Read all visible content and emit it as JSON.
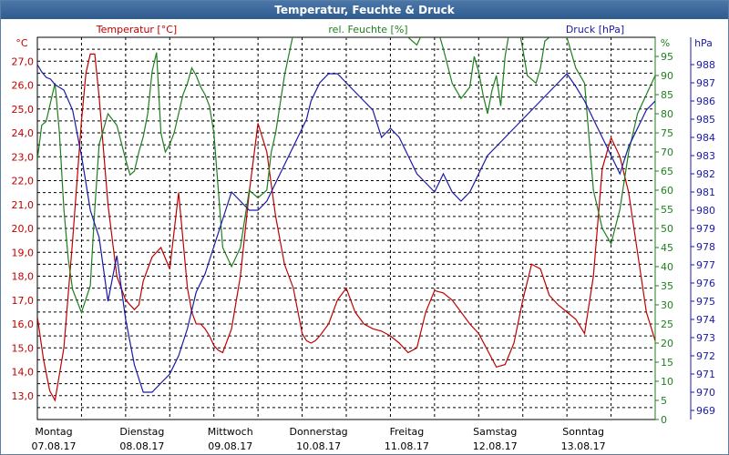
{
  "window": {
    "title": "Temperatur, Feuchte & Druck"
  },
  "chart_data": {
    "type": "line",
    "title": "Temperatur, Feuchte & Druck",
    "grid": true,
    "colors": {
      "temperature": "#c00000",
      "humidity": "#1f7f1f",
      "pressure": "#1a1aa6",
      "grid": "#000000",
      "titlebar": "#3a6a9e"
    },
    "x_range": [
      0,
      7
    ],
    "x_ticks": [
      {
        "x": 0,
        "day": "Montag",
        "date": "07.08.17"
      },
      {
        "x": 1,
        "day": "Dienstag",
        "date": "08.08.17"
      },
      {
        "x": 2,
        "day": "Mittwoch",
        "date": "09.08.17"
      },
      {
        "x": 3,
        "day": "Donnerstag",
        "date": "10.08.17"
      },
      {
        "x": 4,
        "day": "Freitag",
        "date": "11.08.17"
      },
      {
        "x": 5,
        "day": "Samstag",
        "date": "12.08.17"
      },
      {
        "x": 6,
        "day": "Sonntag",
        "date": "13.08.17"
      }
    ],
    "axes": {
      "temperature": {
        "label": "Temperatur [°C]",
        "unit": "°C",
        "range": [
          12.0,
          28.0
        ],
        "ticks": [
          "13,0",
          "14,0",
          "15,0",
          "16,0",
          "17,0",
          "18,0",
          "19,0",
          "20,0",
          "21,0",
          "22,0",
          "23,0",
          "24,0",
          "25,0",
          "26,0",
          "27,0"
        ]
      },
      "humidity": {
        "label": "rel. Feuchte [%]",
        "unit": "%",
        "range": [
          0,
          100
        ],
        "ticks": [
          "0",
          "5",
          "10",
          "15",
          "20",
          "25",
          "30",
          "35",
          "40",
          "45",
          "50",
          "55",
          "60",
          "65",
          "70",
          "75",
          "80",
          "85",
          "90",
          "95"
        ]
      },
      "pressure": {
        "label": "Druck [hPa]",
        "unit": "hPa",
        "range": [
          968.5,
          989.5
        ],
        "ticks": [
          "969",
          "970",
          "971",
          "972",
          "973",
          "974",
          "975",
          "976",
          "977",
          "978",
          "979",
          "980",
          "981",
          "982",
          "983",
          "984",
          "985",
          "986",
          "987",
          "988"
        ]
      }
    },
    "series": [
      {
        "name": "Temperatur [°C]",
        "axis": "temperature",
        "x": [
          0,
          0.07,
          0.14,
          0.2,
          0.3,
          0.4,
          0.5,
          0.55,
          0.6,
          0.65,
          0.7,
          0.8,
          0.9,
          1.0,
          1.1,
          1.15,
          1.2,
          1.3,
          1.4,
          1.5,
          1.6,
          1.7,
          1.75,
          1.8,
          1.85,
          1.9,
          1.95,
          2.0,
          2.05,
          2.1,
          2.2,
          2.3,
          2.4,
          2.5,
          2.6,
          2.7,
          2.8,
          2.9,
          3.0,
          3.05,
          3.1,
          3.15,
          3.2,
          3.3,
          3.4,
          3.5,
          3.6,
          3.7,
          3.8,
          3.9,
          4.0,
          4.1,
          4.2,
          4.3,
          4.4,
          4.5,
          4.6,
          4.7,
          4.8,
          4.9,
          5.0,
          5.1,
          5.2,
          5.3,
          5.4,
          5.5,
          5.6,
          5.7,
          5.8,
          5.9,
          6.0,
          6.1,
          6.2,
          6.3,
          6.4,
          6.5,
          6.6,
          6.7,
          6.8,
          6.9,
          7.0
        ],
        "values": [
          16.3,
          14.5,
          13.2,
          12.8,
          15.0,
          19.5,
          24.5,
          26.5,
          27.3,
          27.3,
          25.5,
          21.0,
          18.0,
          17.0,
          16.6,
          16.8,
          17.8,
          18.8,
          19.2,
          18.3,
          21.5,
          17.5,
          16.5,
          16.0,
          16.0,
          15.8,
          15.5,
          15.1,
          14.9,
          14.8,
          15.8,
          18.0,
          21.5,
          24.4,
          23.2,
          20.5,
          18.5,
          17.5,
          15.6,
          15.3,
          15.2,
          15.3,
          15.5,
          16.0,
          17.0,
          17.5,
          16.5,
          16.0,
          15.8,
          15.7,
          15.5,
          15.2,
          14.8,
          15.0,
          16.5,
          17.4,
          17.3,
          17.0,
          16.5,
          16.0,
          15.6,
          14.9,
          14.2,
          14.3,
          15.2,
          17.0,
          18.5,
          18.3,
          17.2,
          16.8,
          16.5,
          16.2,
          15.6,
          18.0,
          22.5,
          23.8,
          23.0,
          21.5,
          19.0,
          16.5,
          15.3
        ]
      },
      {
        "name": "rel. Feuchte [%]",
        "axis": "humidity",
        "x": [
          0,
          0.05,
          0.1,
          0.15,
          0.2,
          0.25,
          0.3,
          0.35,
          0.4,
          0.5,
          0.6,
          0.65,
          0.7,
          0.8,
          0.9,
          1.0,
          1.05,
          1.1,
          1.15,
          1.2,
          1.25,
          1.3,
          1.35,
          1.4,
          1.45,
          1.5,
          1.55,
          1.6,
          1.65,
          1.7,
          1.75,
          1.8,
          1.85,
          1.9,
          1.95,
          2.0,
          2.05,
          2.1,
          2.2,
          2.3,
          2.4,
          2.5,
          2.6,
          2.65,
          2.7,
          2.8,
          2.9,
          3.0,
          3.05,
          3.1,
          3.15,
          3.2,
          3.3,
          3.4,
          3.5,
          3.6,
          3.7,
          3.8,
          3.9,
          4.0,
          4.1,
          4.2,
          4.3,
          4.4,
          4.5,
          4.6,
          4.7,
          4.8,
          4.9,
          4.95,
          5.0,
          5.05,
          5.1,
          5.15,
          5.2,
          5.25,
          5.3,
          5.35,
          5.4,
          5.45,
          5.5,
          5.55,
          5.6,
          5.65,
          5.7,
          5.75,
          5.8,
          5.85,
          5.9,
          5.95,
          6.0,
          6.1,
          6.2,
          6.3,
          6.4,
          6.5,
          6.6,
          6.7,
          6.8,
          6.9,
          7.0
        ],
        "values": [
          68,
          77,
          78,
          83,
          88,
          75,
          55,
          42,
          34,
          28,
          35,
          55,
          72,
          80,
          77,
          68,
          64,
          65,
          70,
          74,
          80,
          91,
          96,
          75,
          70,
          72,
          75,
          80,
          85,
          88,
          92,
          90,
          87,
          85,
          82,
          75,
          60,
          45,
          40,
          45,
          60,
          58,
          60,
          70,
          75,
          90,
          101,
          103,
          104,
          105,
          104,
          103,
          102,
          101,
          100,
          102,
          104,
          105,
          103,
          100,
          102,
          100,
          98,
          103,
          105,
          97,
          88,
          84,
          87,
          95,
          91,
          85,
          80,
          86,
          90,
          82,
          95,
          102,
          105,
          103,
          97,
          90,
          89,
          88,
          92,
          99,
          100,
          105,
          104,
          102,
          100,
          92,
          88,
          60,
          50,
          46,
          55,
          70,
          80,
          85,
          90
        ]
      },
      {
        "name": "Druck [hPa]",
        "axis": "pressure",
        "x": [
          0,
          0.05,
          0.1,
          0.15,
          0.2,
          0.3,
          0.4,
          0.5,
          0.55,
          0.6,
          0.7,
          0.8,
          0.9,
          1.0,
          1.1,
          1.2,
          1.3,
          1.4,
          1.5,
          1.6,
          1.7,
          1.8,
          1.9,
          2.0,
          2.1,
          2.2,
          2.3,
          2.4,
          2.5,
          2.6,
          2.7,
          2.8,
          2.9,
          3.0,
          3.05,
          3.1,
          3.2,
          3.3,
          3.4,
          3.5,
          3.6,
          3.7,
          3.8,
          3.9,
          4.0,
          4.1,
          4.2,
          4.3,
          4.4,
          4.5,
          4.6,
          4.7,
          4.8,
          4.9,
          5.0,
          5.1,
          5.2,
          5.3,
          5.4,
          5.5,
          5.6,
          5.7,
          5.8,
          5.9,
          6.0,
          6.1,
          6.2,
          6.3,
          6.4,
          6.5,
          6.6,
          6.7,
          6.8,
          6.9,
          7.0
        ],
        "values": [
          988.0,
          987.6,
          987.3,
          987.2,
          986.9,
          986.6,
          985.5,
          983.0,
          981.5,
          980.0,
          978.5,
          975.0,
          977.5,
          974.0,
          971.5,
          970.0,
          970.0,
          970.5,
          971.0,
          972.0,
          973.5,
          975.5,
          976.5,
          978.0,
          979.5,
          981.0,
          980.5,
          980.0,
          980.0,
          980.5,
          981.5,
          982.5,
          983.5,
          984.5,
          985.0,
          986.0,
          987.0,
          987.5,
          987.5,
          987.0,
          986.5,
          986.0,
          985.5,
          984.0,
          984.5,
          984.0,
          983.0,
          982.0,
          981.5,
          981.0,
          982.0,
          981.0,
          980.5,
          981.0,
          982.0,
          983.0,
          983.5,
          984.0,
          984.5,
          985.0,
          985.5,
          986.0,
          986.5,
          987.0,
          987.5,
          986.8,
          986.0,
          985.0,
          984.0,
          983.0,
          982.0,
          983.5,
          984.5,
          985.5,
          986.0
        ]
      }
    ]
  }
}
